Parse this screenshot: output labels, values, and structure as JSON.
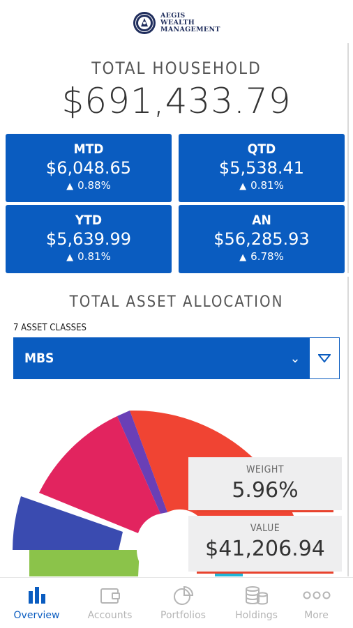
{
  "brand": {
    "line1": "AEGIS",
    "line2": "WEALTH",
    "line3": "MANAGEMENT"
  },
  "household": {
    "label": "TOTAL HOUSEHOLD",
    "value": "$691,433.79"
  },
  "tiles": [
    {
      "label": "MTD",
      "value": "$6,048.65",
      "pct": "0.88%"
    },
    {
      "label": "QTD",
      "value": "$5,538.41",
      "pct": "0.81%"
    },
    {
      "label": "YTD",
      "value": "$5,639.99",
      "pct": "0.81%"
    },
    {
      "label": "AN",
      "value": "$56,285.93",
      "pct": "6.78%"
    }
  ],
  "allocation": {
    "title": "TOTAL ASSET ALLOCATION",
    "count_label": "7 ASSET CLASSES",
    "selected": "MBS",
    "weight_label": "WEIGHT",
    "weight_value": "5.96%",
    "value_label": "VALUE",
    "value_value": "$41,206.94"
  },
  "colors": {
    "accent": "#0a5cc0",
    "up": "#ffffff",
    "slice_red": "#f04433",
    "slice_magenta": "#e2245f",
    "slice_purple": "#6a3fb6",
    "slice_indigo": "#3a4bb0",
    "slice_green": "#8bc34a",
    "slice_cyan": "#1fb6d8"
  },
  "tabs": [
    {
      "label": "Overview",
      "icon": "bar-chart-icon"
    },
    {
      "label": "Accounts",
      "icon": "wallet-icon"
    },
    {
      "label": "Portfolios",
      "icon": "pie-chart-icon"
    },
    {
      "label": "Holdings",
      "icon": "coins-icon"
    },
    {
      "label": "More",
      "icon": "more-dots-icon"
    }
  ]
}
